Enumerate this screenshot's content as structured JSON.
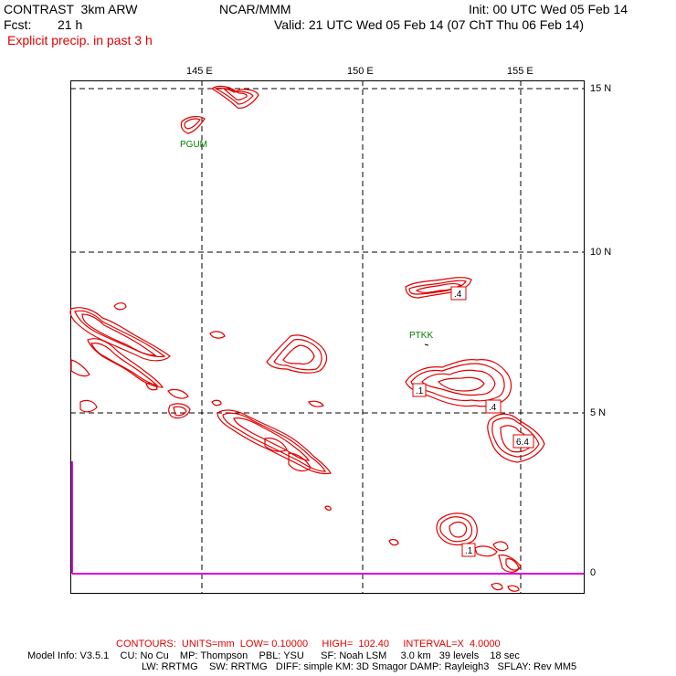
{
  "header": {
    "model": "CONTRAST  3km ARW",
    "institution": "NCAR/MMM",
    "init": "Init: 00 UTC Wed 05 Feb 14",
    "fcst_label": "Fcst:",
    "fcst_value": "21 h",
    "valid": "Valid: 21 UTC Wed 05 Feb 14 (07 ChT Thu 06 Feb 14)",
    "field": "Explicit precip. in past 3 h"
  },
  "map": {
    "lon_labels": [
      "145 E",
      "150 E",
      "155 E"
    ],
    "lat_labels": [
      "15 N",
      "10 N",
      "5 N",
      "0"
    ],
    "stations": [
      "PGUM",
      "PTKK"
    ],
    "contour_labels": [
      ".4",
      ".1",
      ".4",
      "6.4",
      ".1"
    ],
    "colors": {
      "contour": "#e00000",
      "station": "#008000",
      "boundary": "#e000e0",
      "grid": "#000000"
    }
  },
  "footer": {
    "contours": "CONTOURS:  UNITS=mm  LOW= 0.10000     HIGH=  102.40     INTERVAL=X  4.0000",
    "model_info_1": "Model Info: V3.5.1    CU: No Cu    MP: Thompson    PBL: YSU      SF: Noah LSM     3.0 km   39 levels    18 sec",
    "model_info_2": "LW: RRTMG    SW: RRTMG   DIFF: simple KM: 3D Smagor DAMP: Rayleigh3   SFLAY: Rev MM5"
  }
}
